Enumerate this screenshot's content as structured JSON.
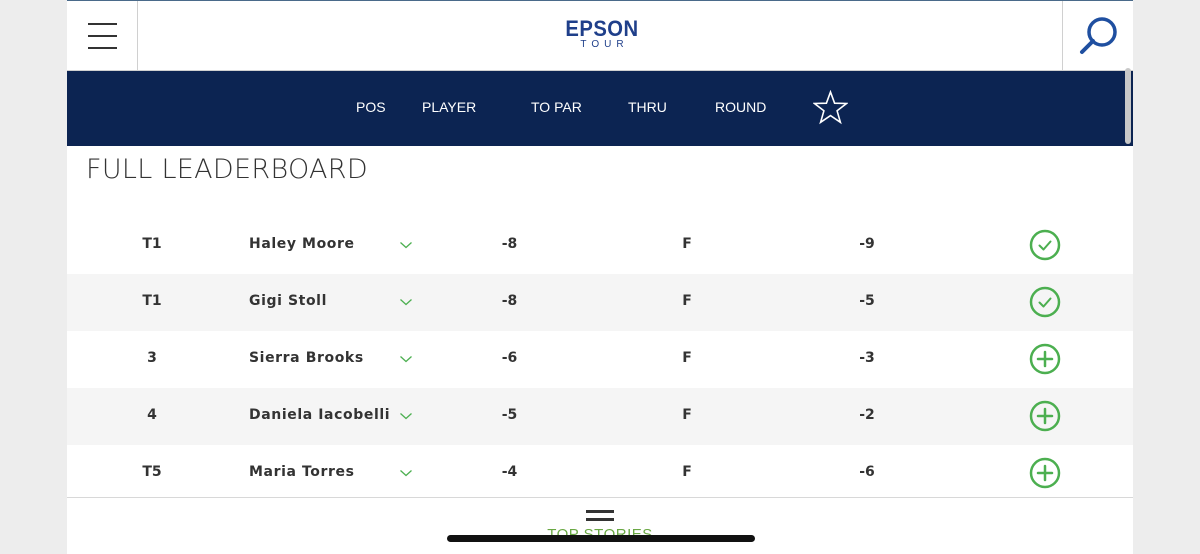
{
  "header": {
    "logo_line1": "EPSON",
    "logo_line2": "TOUR"
  },
  "columns": {
    "pos": "POS",
    "player": "PLAYER",
    "to_par": "TO PAR",
    "thru": "THRU",
    "round": "ROUND"
  },
  "title": "FULL LEADERBOARD",
  "rows": [
    {
      "pos": "T1",
      "player": "Haley Moore",
      "to_par": "-8",
      "thru": "F",
      "round": "-9",
      "action": "check"
    },
    {
      "pos": "T1",
      "player": "Gigi Stoll",
      "to_par": "-8",
      "thru": "F",
      "round": "-5",
      "action": "check"
    },
    {
      "pos": "3",
      "player": "Sierra Brooks",
      "to_par": "-6",
      "thru": "F",
      "round": "-3",
      "action": "add"
    },
    {
      "pos": "4",
      "player": "Daniela Iacobelli",
      "to_par": "-5",
      "thru": "F",
      "round": "-2",
      "action": "add"
    },
    {
      "pos": "T5",
      "player": "Maria Torres",
      "to_par": "-4",
      "thru": "F",
      "round": "-6",
      "action": "add"
    }
  ],
  "footer": {
    "top_stories_label": "TOP STORIES"
  },
  "colors": {
    "navy": "#0c2452",
    "brand_blue": "#1f3f8a",
    "green": "#4caf50",
    "accent_green": "#6aa844"
  }
}
